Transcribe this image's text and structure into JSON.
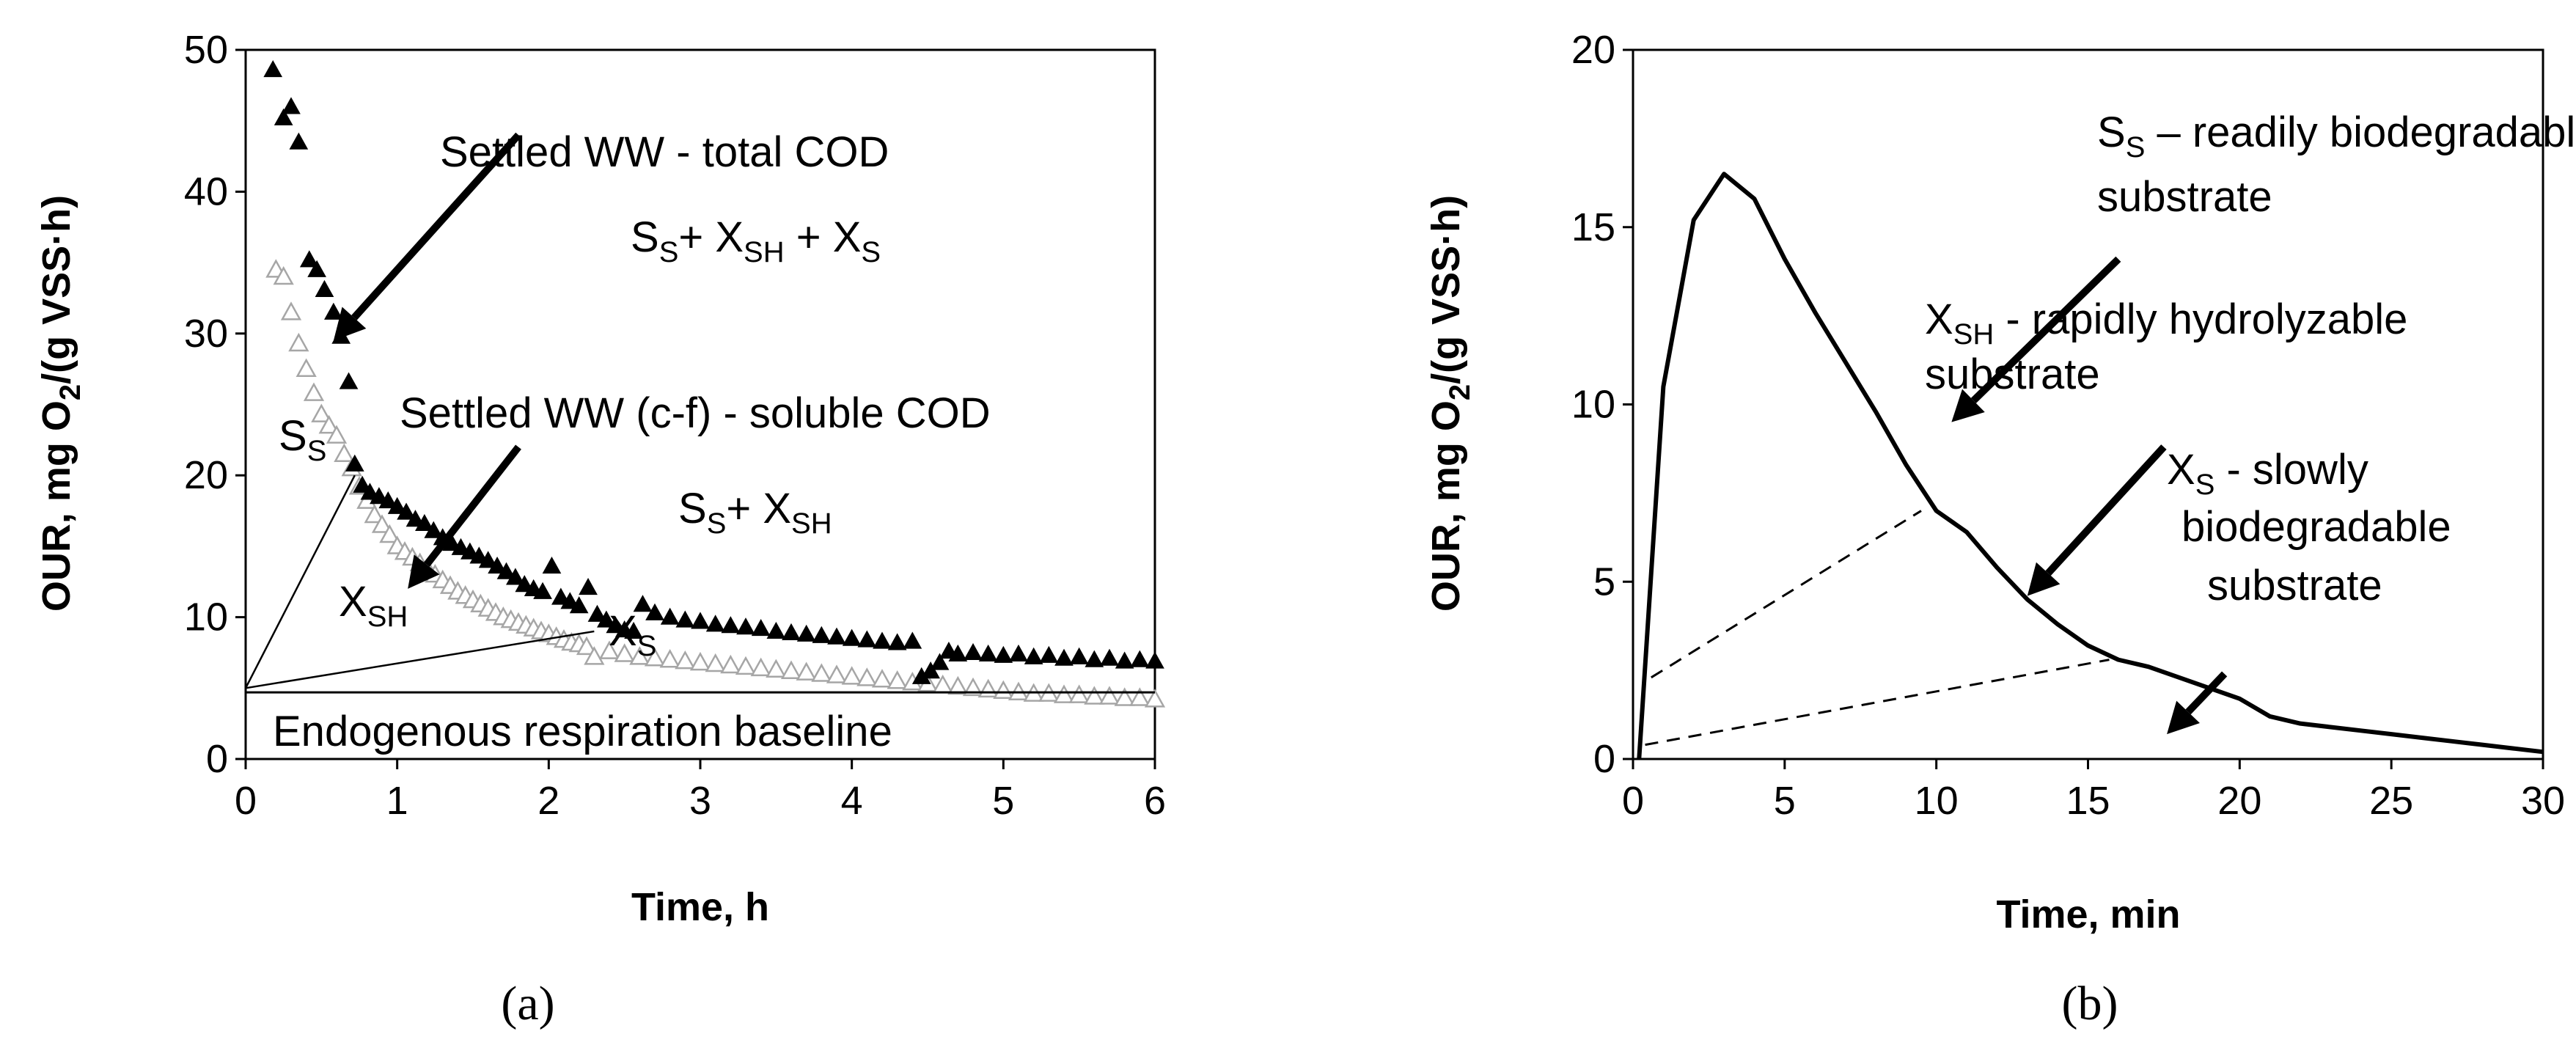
{
  "chart_data": [
    {
      "type": "scatter",
      "panel_label": "(a)",
      "xlabel": "Time, h",
      "ylabel": "OUR, mg O₂/(g VSS·h)",
      "xlim": [
        0,
        6
      ],
      "ylim": [
        0,
        50
      ],
      "xticks": [
        0,
        1,
        2,
        3,
        4,
        5,
        6
      ],
      "yticks": [
        0,
        10,
        20,
        30,
        40,
        50
      ],
      "series": [
        {
          "name": "Settled WW - total COD",
          "marker": "filled-triangle",
          "color": "#000000",
          "points": [
            [
              0.18,
              48.6
            ],
            [
              0.25,
              45.2
            ],
            [
              0.3,
              46.0
            ],
            [
              0.35,
              43.5
            ],
            [
              0.42,
              35.2
            ],
            [
              0.47,
              34.5
            ],
            [
              0.52,
              33.1
            ],
            [
              0.58,
              31.5
            ],
            [
              0.63,
              29.8
            ],
            [
              0.68,
              26.6
            ],
            [
              0.72,
              20.8
            ],
            [
              0.77,
              19.3
            ],
            [
              0.82,
              18.8
            ],
            [
              0.88,
              18.5
            ],
            [
              0.94,
              18.2
            ],
            [
              1.0,
              17.8
            ],
            [
              1.06,
              17.4
            ],
            [
              1.12,
              16.9
            ],
            [
              1.18,
              16.6
            ],
            [
              1.24,
              16.1
            ],
            [
              1.3,
              15.6
            ],
            [
              1.36,
              15.2
            ],
            [
              1.42,
              14.9
            ],
            [
              1.48,
              14.6
            ],
            [
              1.54,
              14.3
            ],
            [
              1.6,
              14.0
            ],
            [
              1.66,
              13.6
            ],
            [
              1.72,
              13.2
            ],
            [
              1.78,
              12.8
            ],
            [
              1.84,
              12.3
            ],
            [
              1.9,
              12.0
            ],
            [
              1.96,
              11.8
            ],
            [
              2.02,
              13.6
            ],
            [
              2.08,
              11.4
            ],
            [
              2.14,
              11.1
            ],
            [
              2.2,
              10.8
            ],
            [
              2.26,
              12.1
            ],
            [
              2.32,
              10.2
            ],
            [
              2.38,
              9.8
            ],
            [
              2.44,
              9.4
            ],
            [
              2.5,
              9.1
            ],
            [
              2.56,
              9.0
            ],
            [
              2.62,
              10.9
            ],
            [
              2.7,
              10.3
            ],
            [
              2.8,
              10.0
            ],
            [
              2.9,
              9.8
            ],
            [
              3.0,
              9.7
            ],
            [
              3.1,
              9.5
            ],
            [
              3.2,
              9.4
            ],
            [
              3.3,
              9.3
            ],
            [
              3.4,
              9.2
            ],
            [
              3.5,
              9.0
            ],
            [
              3.6,
              8.9
            ],
            [
              3.7,
              8.8
            ],
            [
              3.8,
              8.7
            ],
            [
              3.9,
              8.6
            ],
            [
              4.0,
              8.5
            ],
            [
              4.1,
              8.4
            ],
            [
              4.2,
              8.3
            ],
            [
              4.3,
              8.2
            ],
            [
              4.4,
              8.3
            ],
            [
              4.46,
              5.8
            ],
            [
              4.52,
              6.2
            ],
            [
              4.58,
              6.8
            ],
            [
              4.64,
              7.6
            ],
            [
              4.7,
              7.4
            ],
            [
              4.8,
              7.5
            ],
            [
              4.9,
              7.4
            ],
            [
              5.0,
              7.3
            ],
            [
              5.1,
              7.4
            ],
            [
              5.2,
              7.2
            ],
            [
              5.3,
              7.3
            ],
            [
              5.4,
              7.1
            ],
            [
              5.5,
              7.2
            ],
            [
              5.6,
              7.0
            ],
            [
              5.7,
              7.1
            ],
            [
              5.8,
              6.9
            ],
            [
              5.9,
              7.0
            ],
            [
              6.0,
              6.9
            ]
          ]
        },
        {
          "name": "Settled WW (c-f) - soluble COD",
          "marker": "open-triangle",
          "color": "#a6a6a6",
          "points": [
            [
              0.2,
              34.5
            ],
            [
              0.25,
              34.0
            ],
            [
              0.3,
              31.5
            ],
            [
              0.35,
              29.3
            ],
            [
              0.4,
              27.5
            ],
            [
              0.45,
              25.8
            ],
            [
              0.5,
              24.3
            ],
            [
              0.55,
              23.5
            ],
            [
              0.6,
              22.8
            ],
            [
              0.65,
              21.5
            ],
            [
              0.7,
              20.5
            ],
            [
              0.75,
              19.2
            ],
            [
              0.8,
              18.2
            ],
            [
              0.85,
              17.2
            ],
            [
              0.9,
              16.5
            ],
            [
              0.95,
              15.8
            ],
            [
              1.0,
              15.0
            ],
            [
              1.05,
              14.6
            ],
            [
              1.1,
              14.2
            ],
            [
              1.15,
              13.8
            ],
            [
              1.2,
              13.4
            ],
            [
              1.25,
              13.0
            ],
            [
              1.3,
              12.6
            ],
            [
              1.35,
              12.2
            ],
            [
              1.4,
              11.8
            ],
            [
              1.45,
              11.5
            ],
            [
              1.5,
              11.2
            ],
            [
              1.55,
              10.9
            ],
            [
              1.6,
              10.6
            ],
            [
              1.65,
              10.3
            ],
            [
              1.7,
              10.0
            ],
            [
              1.75,
              9.8
            ],
            [
              1.8,
              9.6
            ],
            [
              1.85,
              9.4
            ],
            [
              1.9,
              9.2
            ],
            [
              1.95,
              9.0
            ],
            [
              2.0,
              8.8
            ],
            [
              2.05,
              8.6
            ],
            [
              2.1,
              8.4
            ],
            [
              2.15,
              8.2
            ],
            [
              2.2,
              8.1
            ],
            [
              2.25,
              7.9
            ],
            [
              2.3,
              7.2
            ],
            [
              2.4,
              7.6
            ],
            [
              2.5,
              7.4
            ],
            [
              2.6,
              7.2
            ],
            [
              2.7,
              7.1
            ],
            [
              2.8,
              7.0
            ],
            [
              2.9,
              6.9
            ],
            [
              3.0,
              6.8
            ],
            [
              3.1,
              6.7
            ],
            [
              3.2,
              6.6
            ],
            [
              3.3,
              6.5
            ],
            [
              3.4,
              6.4
            ],
            [
              3.5,
              6.3
            ],
            [
              3.6,
              6.2
            ],
            [
              3.7,
              6.1
            ],
            [
              3.8,
              6.0
            ],
            [
              3.9,
              5.9
            ],
            [
              4.0,
              5.8
            ],
            [
              4.1,
              5.7
            ],
            [
              4.2,
              5.6
            ],
            [
              4.3,
              5.5
            ],
            [
              4.4,
              5.4
            ],
            [
              4.5,
              5.3
            ],
            [
              4.6,
              5.2
            ],
            [
              4.7,
              5.1
            ],
            [
              4.8,
              5.0
            ],
            [
              4.9,
              4.9
            ],
            [
              5.0,
              4.8
            ],
            [
              5.1,
              4.7
            ],
            [
              5.2,
              4.6
            ],
            [
              5.3,
              4.6
            ],
            [
              5.4,
              4.5
            ],
            [
              5.5,
              4.5
            ],
            [
              5.6,
              4.4
            ],
            [
              5.7,
              4.4
            ],
            [
              5.8,
              4.3
            ],
            [
              5.9,
              4.3
            ],
            [
              6.0,
              4.2
            ]
          ]
        }
      ],
      "baseline": {
        "y": 4.7,
        "label": "Endogenous respiration baseline"
      },
      "construction_lines": [
        [
          [
            0.0,
            5.0
          ],
          [
            0.72,
            20.0
          ]
        ],
        [
          [
            0.0,
            5.0
          ],
          [
            2.3,
            9.0
          ]
        ]
      ],
      "arrows": [
        [
          [
            1.8,
            44.0
          ],
          [
            0.58,
            29.5
          ]
        ],
        [
          [
            1.8,
            22.0
          ],
          [
            1.07,
            12.0
          ]
        ]
      ],
      "annotations": {
        "total_cod": "Settled WW - total COD",
        "total_components": {
          "s": "S",
          "s_sub": "S",
          "plus1": "+ X",
          "xsh_sub": "SH",
          "plus2": " + X",
          "xs_sub": "S"
        },
        "soluble_cod": "Settled WW (c-f) - soluble COD",
        "soluble_components": {
          "s": "S",
          "s_sub": "S",
          "plus": "+ X",
          "xsh_sub": "SH"
        },
        "ss_label": {
          "main": "S",
          "sub": "S"
        },
        "xsh_label": {
          "main": "X",
          "sub": "SH"
        },
        "xs_label": {
          "main": "X",
          "sub": "S"
        }
      }
    },
    {
      "type": "line",
      "panel_label": "(b)",
      "xlabel": "Time, min",
      "ylabel": "OUR, mg O₂/(g VSS·h)",
      "xlim": [
        0,
        30
      ],
      "ylim": [
        0,
        20
      ],
      "xticks": [
        0,
        5,
        10,
        15,
        20,
        25,
        30
      ],
      "yticks": [
        0,
        5,
        10,
        15,
        20
      ],
      "series": [
        {
          "name": "OUR",
          "color": "#000000",
          "x": [
            0.2,
            1.0,
            2.0,
            3.0,
            4.0,
            5.0,
            6.0,
            7.0,
            8.0,
            9.0,
            10.0,
            11.0,
            12.0,
            13.0,
            14.0,
            15.0,
            16.0,
            17.0,
            18.0,
            19.0,
            20.0,
            21.0,
            22.0,
            23.0,
            24.0,
            25.0,
            26.0,
            27.0,
            28.0,
            29.0,
            30.0
          ],
          "y": [
            0.0,
            10.5,
            15.2,
            16.5,
            15.8,
            14.1,
            12.6,
            11.2,
            9.8,
            8.3,
            7.0,
            6.4,
            5.4,
            4.5,
            3.8,
            3.2,
            2.8,
            2.6,
            2.3,
            2.0,
            1.7,
            1.2,
            1.0,
            0.9,
            0.8,
            0.7,
            0.6,
            0.5,
            0.4,
            0.3,
            0.2
          ]
        }
      ],
      "dashed_lines": [
        [
          [
            0.6,
            2.3
          ],
          [
            9.5,
            7.0
          ]
        ],
        [
          [
            0.4,
            0.4
          ],
          [
            15.7,
            2.8
          ]
        ]
      ],
      "arrows": [
        [
          [
            16.0,
            14.1
          ],
          [
            10.5,
            9.5
          ]
        ],
        [
          [
            17.5,
            8.8
          ],
          [
            13.0,
            4.6
          ]
        ],
        [
          [
            19.5,
            2.4
          ],
          [
            17.6,
            0.7
          ]
        ]
      ],
      "annotations": {
        "ss": {
          "main": "S",
          "sub": "S",
          "text": " – readily biodegradable",
          "line2": "substrate"
        },
        "xsh": {
          "main": "X",
          "sub": "SH",
          "text": " - rapidly hydrolyzable",
          "line2": "substrate"
        },
        "xs": {
          "main": "X",
          "sub": "S",
          "text": " - slowly",
          "line2": "biodegradable",
          "line3": "substrate"
        }
      }
    }
  ]
}
